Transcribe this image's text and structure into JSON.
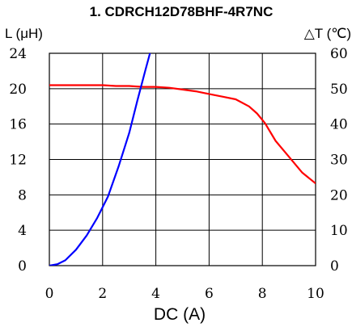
{
  "chart_data": {
    "type": "line",
    "title": "1. CDRCH12D78BHF-4R7NC",
    "xlabel": "DC (A)",
    "ylabel_left": "L (μH)",
    "ylabel_right": "△T (℃)",
    "xlim": [
      0,
      10
    ],
    "ylim_left": [
      0,
      24
    ],
    "ylim_right": [
      0,
      60
    ],
    "grid": true,
    "x_ticks": [
      "0",
      "2",
      "4",
      "6",
      "8",
      "10"
    ],
    "y_ticks_left": [
      "0",
      "4",
      "8",
      "12",
      "16",
      "20",
      "24"
    ],
    "y_ticks_right": [
      "0",
      "10",
      "20",
      "30",
      "40",
      "50",
      "60"
    ],
    "series": [
      {
        "axis": "left",
        "color": "#ff0000",
        "x": [
          0,
          0.5,
          1,
          1.5,
          2,
          2.5,
          3,
          3.5,
          4,
          4.5,
          5,
          5.5,
          6,
          6.5,
          7,
          7.5,
          7.8,
          8.1,
          8.5,
          9,
          9.5,
          10
        ],
        "y": [
          20.4,
          20.4,
          20.4,
          20.4,
          20.4,
          20.3,
          20.3,
          20.2,
          20.2,
          20.1,
          19.9,
          19.7,
          19.4,
          19.1,
          18.8,
          18.0,
          17.2,
          16.1,
          14.1,
          12.3,
          10.5,
          9.3
        ]
      },
      {
        "axis": "right",
        "color": "#0000ff",
        "x": [
          0,
          0.3,
          0.6,
          1,
          1.4,
          1.8,
          2.2,
          2.6,
          3,
          3.3,
          3.6,
          3.85
        ],
        "y": [
          0,
          0.4,
          1.5,
          4.5,
          8.5,
          13.5,
          19.5,
          28,
          37.5,
          46.5,
          55,
          62
        ]
      }
    ]
  }
}
